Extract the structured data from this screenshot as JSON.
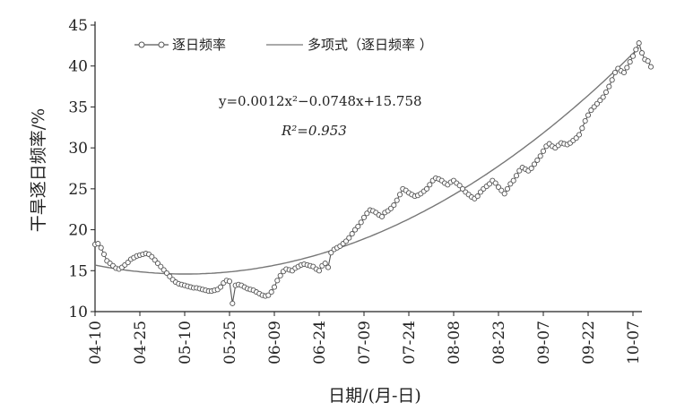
{
  "chart_data": {
    "type": "line",
    "xlabel": "日期/(月-日)",
    "ylabel": "干旱逐日频率/%",
    "ylim": [
      10,
      45
    ],
    "yticks": [
      10,
      15,
      20,
      25,
      30,
      35,
      40,
      45
    ],
    "xtick_labels": [
      "04-10",
      "04-25",
      "05-10",
      "05-25",
      "06-09",
      "06-24",
      "07-09",
      "07-24",
      "08-08",
      "08-23",
      "09-07",
      "09-22",
      "10-07"
    ],
    "xtick_day_offsets": [
      0,
      15,
      30,
      45,
      60,
      75,
      90,
      105,
      120,
      135,
      150,
      165,
      180
    ],
    "grid": false,
    "legend_position": "top-left",
    "legend": {
      "observed": "逐日频率",
      "fit": "多项式（逐日频率 ）"
    },
    "annotation": {
      "equation": "y=0.0012x²−0.0748x+15.758",
      "r2_label": "R²=0.953"
    },
    "fit_coefficients": {
      "a": 0.0012,
      "b": -0.0748,
      "c": 15.758
    },
    "colors": {
      "series": "#555555",
      "fit": "#777777",
      "axis": "#222222"
    },
    "series": [
      {
        "name": "逐日频率",
        "x_day_offset_start": 0,
        "values": [
          18.2,
          18.3,
          17.8,
          17.0,
          16.2,
          15.9,
          15.6,
          15.3,
          15.2,
          15.4,
          15.7,
          16.0,
          16.4,
          16.6,
          16.8,
          16.9,
          17.0,
          17.1,
          17.0,
          16.7,
          16.3,
          15.9,
          15.5,
          15.1,
          14.7,
          14.3,
          13.9,
          13.6,
          13.4,
          13.3,
          13.2,
          13.1,
          13.0,
          12.9,
          12.9,
          12.8,
          12.7,
          12.6,
          12.5,
          12.5,
          12.6,
          12.7,
          13.0,
          13.5,
          13.8,
          13.7,
          11.0,
          13.2,
          13.3,
          13.2,
          13.0,
          12.8,
          12.7,
          12.6,
          12.4,
          12.2,
          12.0,
          11.9,
          12.0,
          12.4,
          13.0,
          13.8,
          14.4,
          14.9,
          15.2,
          15.1,
          15.0,
          15.3,
          15.5,
          15.7,
          15.8,
          15.7,
          15.6,
          15.5,
          15.2,
          15.0,
          15.6,
          15.9,
          15.4,
          17.2,
          17.6,
          17.8,
          18.0,
          18.3,
          18.6,
          19.0,
          19.5,
          20.0,
          20.4,
          20.9,
          21.5,
          22.0,
          22.4,
          22.3,
          22.1,
          21.8,
          21.6,
          22.1,
          22.3,
          22.6,
          23.0,
          23.6,
          24.3,
          25.0,
          24.8,
          24.5,
          24.3,
          24.1,
          24.2,
          24.4,
          24.7,
          25.0,
          25.5,
          26.0,
          26.3,
          26.2,
          26.0,
          25.7,
          25.5,
          25.8,
          26.0,
          25.7,
          25.4,
          25.0,
          24.6,
          24.3,
          24.0,
          23.8,
          24.1,
          24.6,
          25.0,
          25.3,
          25.6,
          26.0,
          25.7,
          25.2,
          24.8,
          24.4,
          25.0,
          25.6,
          26.0,
          26.6,
          27.2,
          27.6,
          27.4,
          27.2,
          27.5,
          28.0,
          28.5,
          29.0,
          29.6,
          30.2,
          30.5,
          30.2,
          30.0,
          30.3,
          30.6,
          30.5,
          30.4,
          30.6,
          30.9,
          31.2,
          31.6,
          32.4,
          33.3,
          34.0,
          34.6,
          35.0,
          35.4,
          35.8,
          36.2,
          36.8,
          37.5,
          38.3,
          39.2,
          39.7,
          39.4,
          39.2,
          39.8,
          40.5,
          41.2,
          42.0,
          42.8,
          41.6,
          40.8,
          40.6,
          39.9
        ]
      },
      {
        "name": "多项式（逐日频率 ）",
        "fit_of": "逐日频率"
      }
    ]
  }
}
